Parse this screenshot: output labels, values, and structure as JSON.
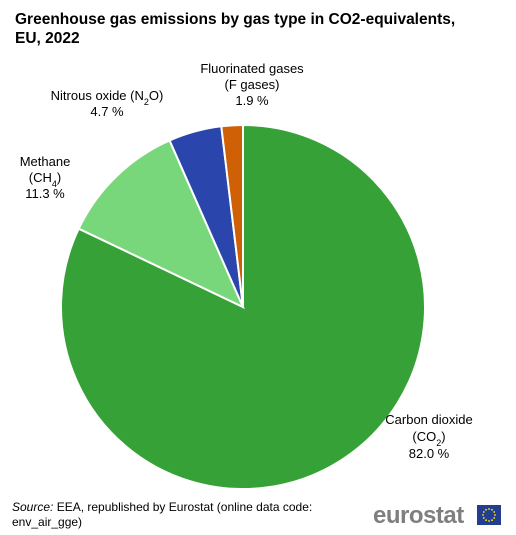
{
  "chart_data": {
    "type": "pie",
    "title": "Greenhouse gas emissions by gas type in CO2-equivalents, EU, 2022",
    "slices": [
      {
        "name": "Carbon dioxide",
        "formula_base": "CO",
        "formula_sub": "2",
        "value": 82.0,
        "value_label": "82.0 %",
        "color": "#36a137"
      },
      {
        "name": "Methane",
        "formula_base": "CH",
        "formula_sub": "4",
        "value": 11.3,
        "value_label": "11.3 %",
        "color": "#78d77b"
      },
      {
        "name": "Nitrous oxide",
        "formula_base": "N",
        "formula_sub": "2",
        "formula_suffix": "O",
        "value": 4.7,
        "value_label": "4.7 %",
        "color": "#2a46ad"
      },
      {
        "name": "Fluorinated gases",
        "name_line2": "(F gases)",
        "value": 1.9,
        "value_label": "1.9 %",
        "color": "#cf6006"
      }
    ]
  },
  "source": {
    "prefix": "Source:",
    "text": "EEA, republished by Eurostat (online data code: env_air_gge)"
  },
  "brand": {
    "text": "eurostat",
    "flag_color": "#233d91",
    "star_color": "#ffed00"
  }
}
